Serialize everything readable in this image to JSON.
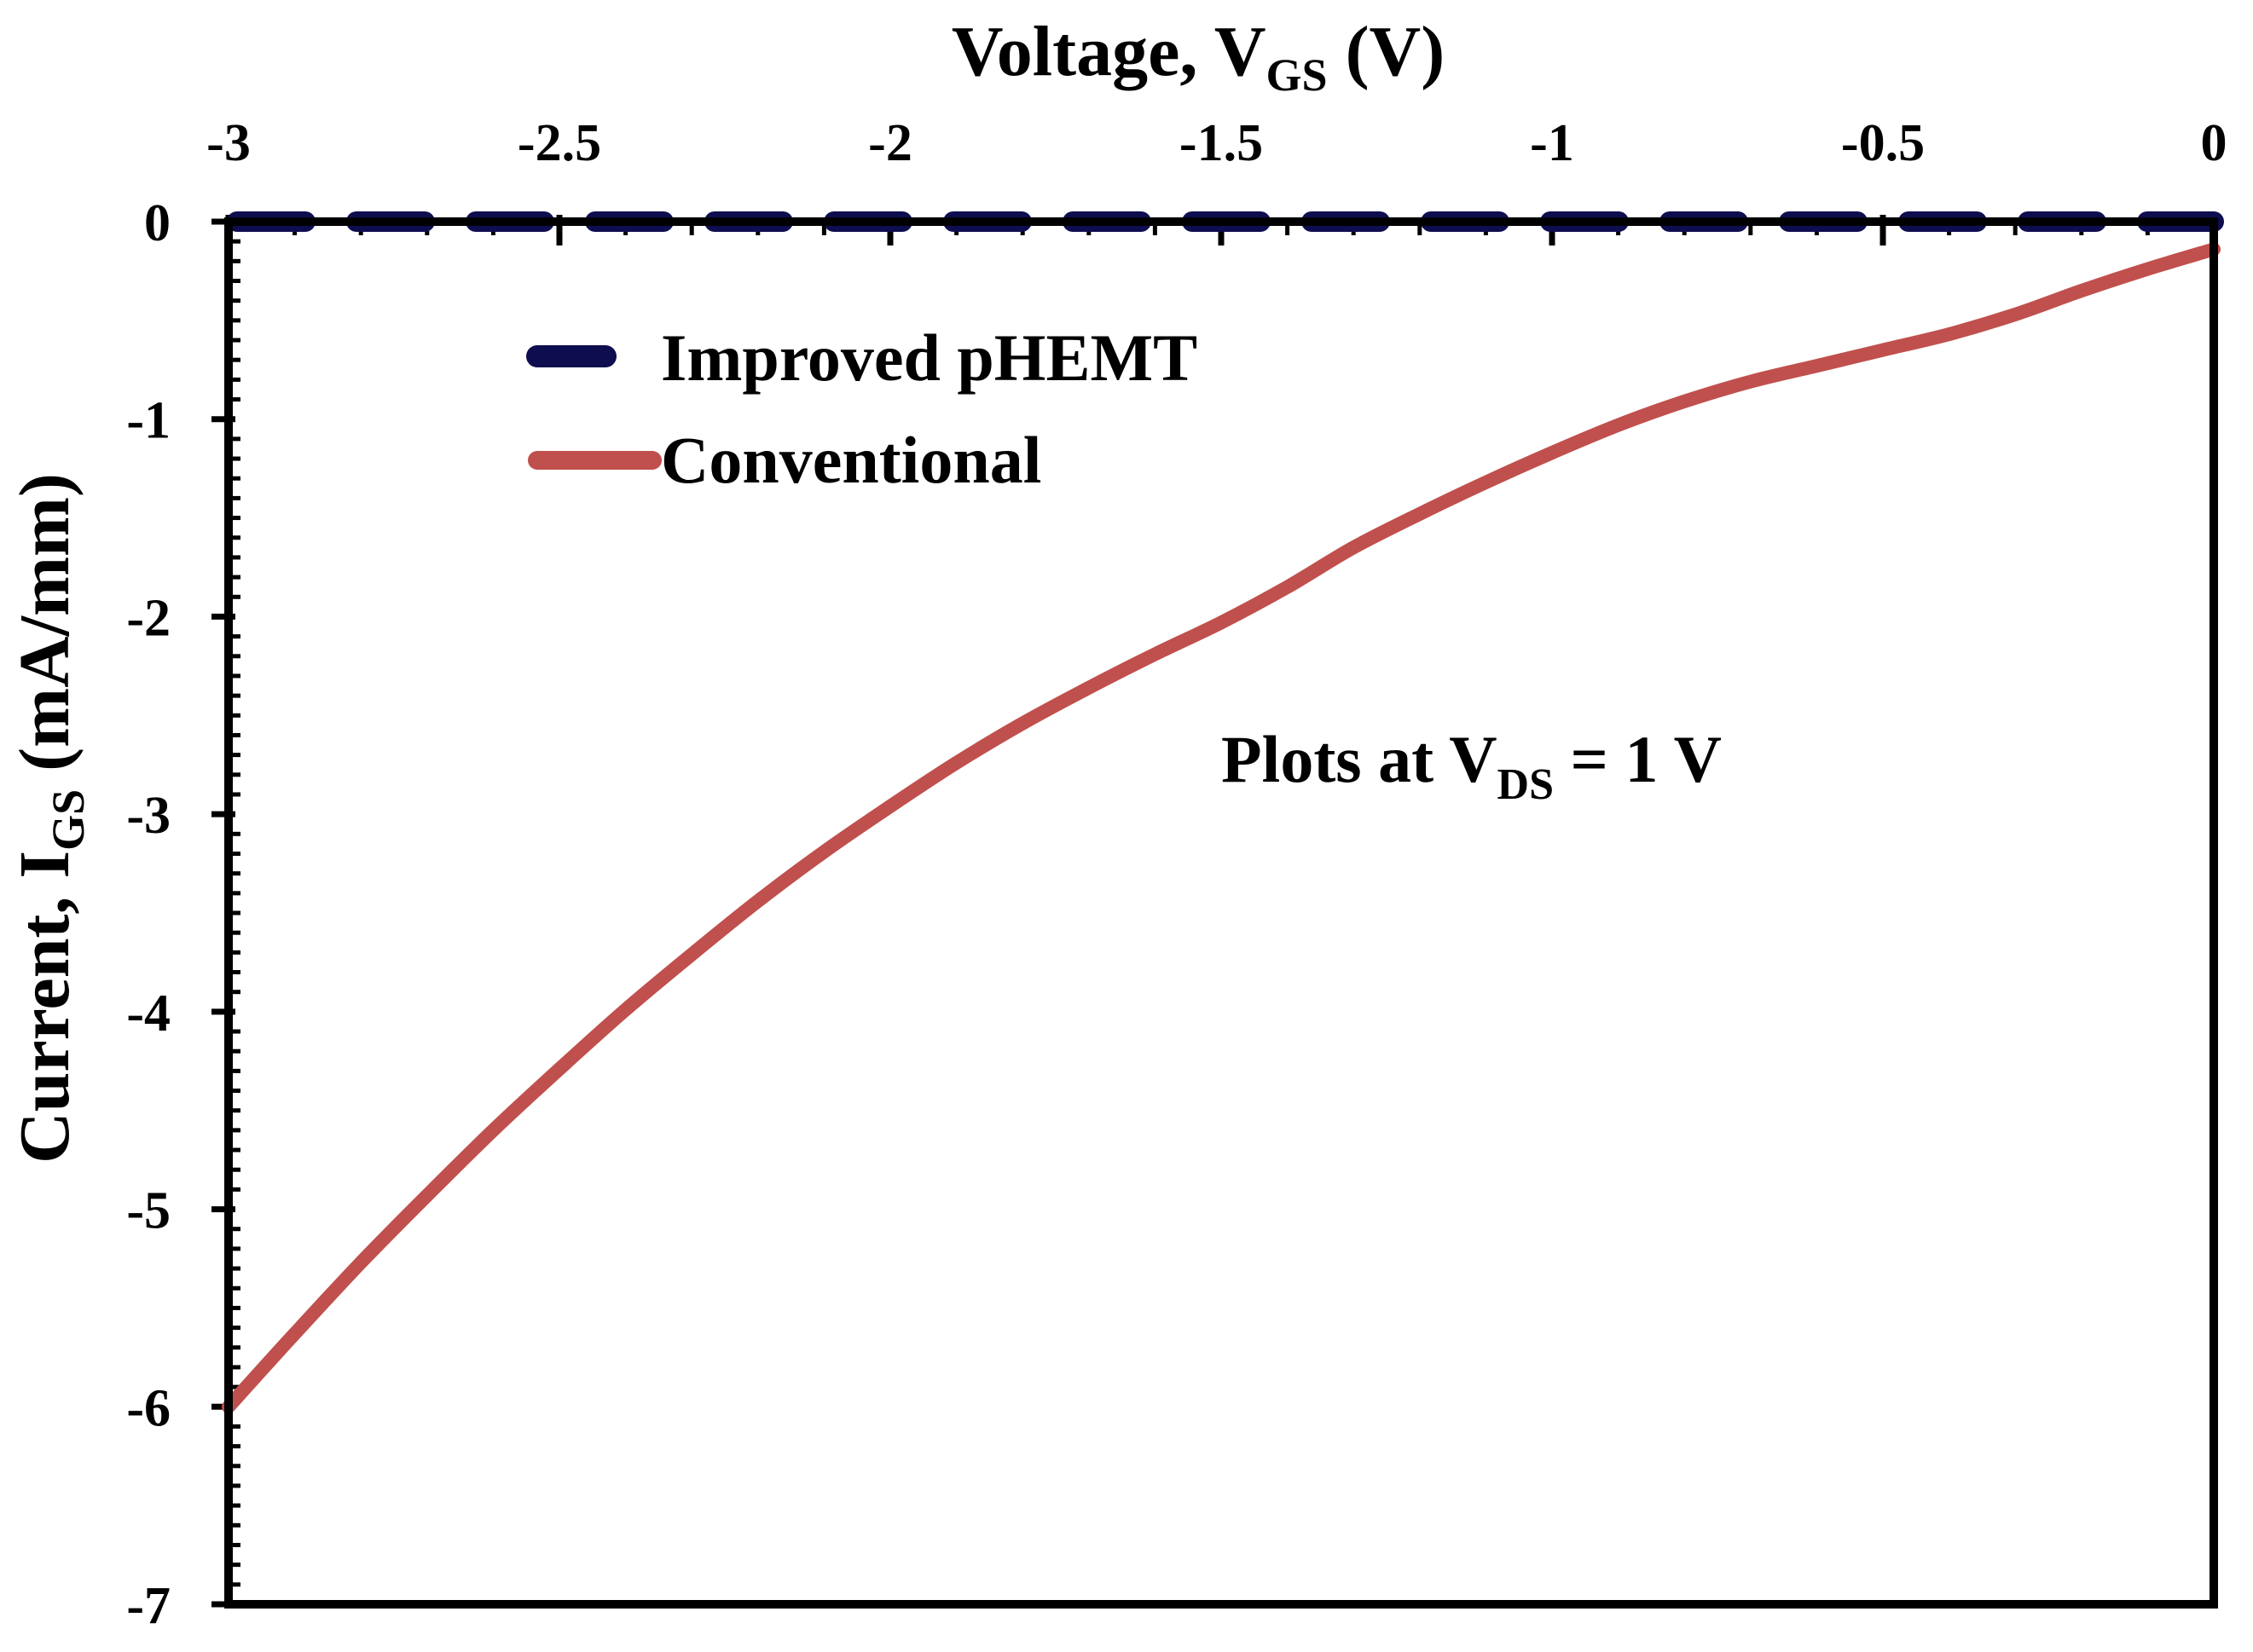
{
  "chart_data": {
    "type": "line",
    "xlabel": {
      "main": "Voltage, V",
      "sub": "GS",
      "unit": " (V)"
    },
    "ylabel": {
      "main": "Current, I",
      "sub": "GS",
      "unit": " (mA/mm)"
    },
    "xlim": [
      -3,
      0
    ],
    "ylim": [
      -7,
      0
    ],
    "x_ticks": [
      -3,
      -2.5,
      -2,
      -1.5,
      -1,
      -0.5,
      0
    ],
    "x_tick_labels": [
      "-3",
      "-2.5",
      "-2",
      "-1.5",
      "-1",
      "-0.5",
      "0"
    ],
    "y_ticks": [
      0,
      -1,
      -2,
      -3,
      -4,
      -5,
      -6,
      -7
    ],
    "y_tick_labels": [
      "0",
      "-1",
      "-2",
      "-3",
      "-4",
      "-5",
      "-6",
      "-7"
    ],
    "x_axis_position": "top",
    "grid": false,
    "legend_position": "top-left",
    "series": [
      {
        "name": "Improved pHEMT",
        "color": "#0d0d4f",
        "style": "dashed",
        "x": [
          -3,
          -2.5,
          -2,
          -1.5,
          -1,
          -0.5,
          0
        ],
        "y": [
          0,
          0,
          0,
          0,
          0,
          0,
          0
        ]
      },
      {
        "name": "Conventional",
        "color": "#c0504d",
        "style": "solid",
        "x": [
          -3,
          -2.9,
          -2.8,
          -2.7,
          -2.6,
          -2.5,
          -2.4,
          -2.3,
          -2.2,
          -2.1,
          -2.0,
          -1.9,
          -1.8,
          -1.7,
          -1.6,
          -1.5,
          -1.4,
          -1.3,
          -1.2,
          -1.1,
          -1.0,
          -0.9,
          -0.8,
          -0.7,
          -0.6,
          -0.5,
          -0.4,
          -0.3,
          -0.2,
          -0.1,
          0
        ],
        "y": [
          -6.0,
          -5.63,
          -5.27,
          -4.93,
          -4.6,
          -4.29,
          -3.99,
          -3.71,
          -3.44,
          -3.19,
          -2.96,
          -2.74,
          -2.54,
          -2.36,
          -2.19,
          -2.03,
          -1.85,
          -1.65,
          -1.48,
          -1.32,
          -1.17,
          -1.03,
          -0.91,
          -0.81,
          -0.73,
          -0.65,
          -0.57,
          -0.47,
          -0.35,
          -0.24,
          -0.14
        ]
      }
    ],
    "annotation": {
      "main": "Plots at V",
      "sub": "DS",
      "rest": " = 1 V"
    }
  }
}
